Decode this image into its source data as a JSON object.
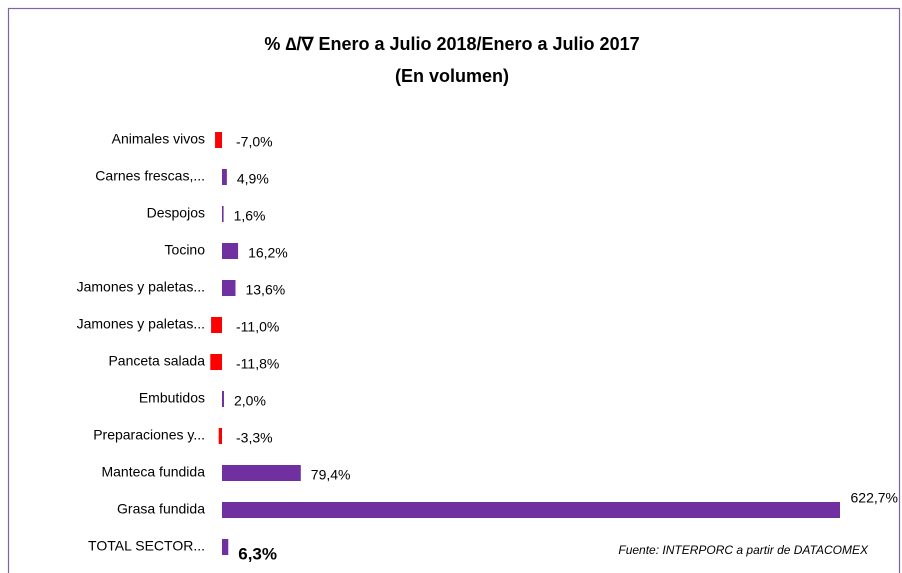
{
  "chart_data": {
    "type": "bar",
    "orientation": "horizontal",
    "title": "% ∆/∇ Enero a Julio 2018/Enero a Julio 2017",
    "subtitle": "(En volumen)",
    "categories": [
      "Animales vivos",
      "Carnes frescas,...",
      "Despojos",
      "Tocino",
      "Jamones y paletas...",
      "Jamones y paletas...",
      "Panceta salada",
      "Embutidos",
      "Preparaciones y...",
      "Manteca fundida",
      "Grasa fundida",
      "TOTAL SECTOR..."
    ],
    "values": [
      -7.0,
      4.9,
      1.6,
      16.2,
      13.6,
      -11.0,
      -11.8,
      2.0,
      -3.3,
      79.4,
      622.7,
      6.3
    ],
    "value_labels": [
      "-7,0%",
      "4,9%",
      "1,6%",
      "16,2%",
      "13,6%",
      "-11,0%",
      "-11,8%",
      "2,0%",
      "-3,3%",
      "79,4%",
      "622,7%",
      "6,3%"
    ],
    "colors": [
      "#ff0000",
      "#7030a0",
      "#7030a0",
      "#7030a0",
      "#7030a0",
      "#ff0000",
      "#ff0000",
      "#7030a0",
      "#ff0000",
      "#7030a0",
      "#7030a0",
      "#7030a0"
    ],
    "annotation": "Fuente: INTERPORC  a partir de DATACOMEX"
  }
}
